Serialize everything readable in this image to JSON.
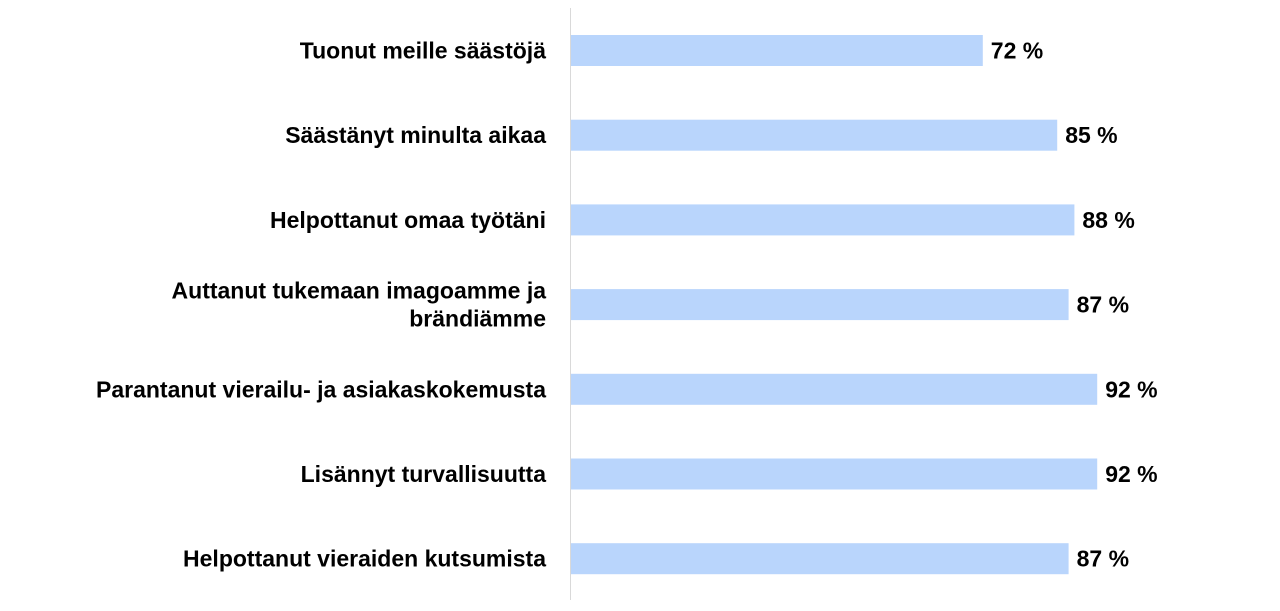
{
  "chart_data": {
    "type": "bar",
    "orientation": "horizontal",
    "categories": [
      "Tuonut meille säästöjä",
      "Säästänyt minulta aikaa",
      "Helpottanut omaa työtäni",
      "Auttanut tukemaan imagoamme ja brändiämme",
      "Parantanut vierailu- ja asiakaskokemusta",
      "Lisännyt turvallisuutta",
      "Helpottanut vieraiden kutsumista"
    ],
    "category_lines": [
      [
        "Tuonut meille säästöjä"
      ],
      [
        "Säästänyt minulta aikaa"
      ],
      [
        "Helpottanut omaa työtäni"
      ],
      [
        "Auttanut tukemaan imagoamme ja",
        "brändiämme"
      ],
      [
        "Parantanut vierailu- ja asiakaskokemusta"
      ],
      [
        "Lisännyt turvallisuutta"
      ],
      [
        "Helpottanut vieraiden kutsumista"
      ]
    ],
    "values": [
      72,
      85,
      88,
      87,
      92,
      92,
      87
    ],
    "value_labels": [
      "72 %",
      "85 %",
      "88 %",
      "87 %",
      "92 %",
      "92 %",
      "87 %"
    ],
    "unit": "%",
    "xlim": [
      0,
      100
    ],
    "grid": false,
    "legend": "none",
    "colors": {
      "bar": "#b9d5fc",
      "axis": "#d9d9d9",
      "text": "#000000"
    }
  }
}
